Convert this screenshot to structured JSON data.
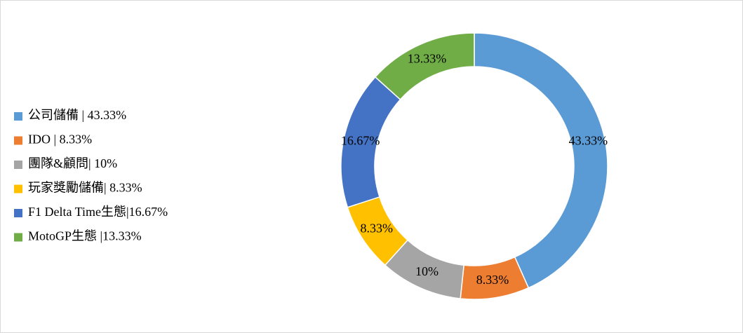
{
  "chart_data": {
    "type": "donut",
    "categories": [
      "公司儲備 | 43.33%",
      "IDO | 8.33%",
      "團隊&顧問| 10%",
      "玩家獎勵儲備| 8.33%",
      "F1 Delta Time生態|16.67%",
      "MotoGP生態 |13.33%"
    ],
    "values": [
      43.33,
      8.33,
      10,
      8.33,
      16.67,
      13.33
    ],
    "value_labels": [
      "43.33%",
      "8.33%",
      "10%",
      "8.33%",
      "16.67%",
      "13.33%"
    ],
    "colors": [
      "#5b9bd5",
      "#ed7d31",
      "#a5a5a5",
      "#ffc000",
      "#4472c4",
      "#70ad47"
    ],
    "legend": "left"
  }
}
